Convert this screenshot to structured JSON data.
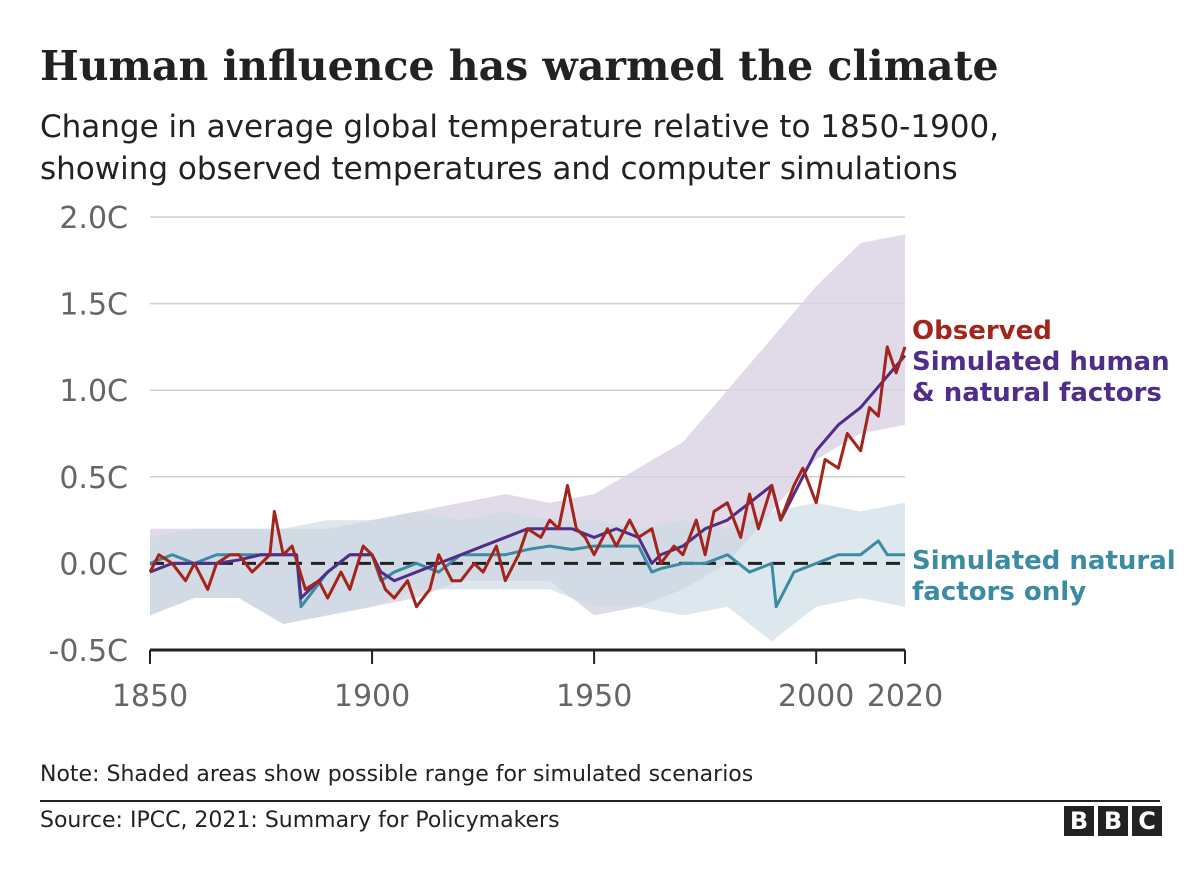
{
  "title": "Human influence has warmed the climate",
  "subtitle_line1": "Change in average global temperature relative to 1850-1900,",
  "subtitle_line2": "showing observed temperatures and computer simulations",
  "note": "Note: Shaded areas show possible range for simulated scenarios",
  "source": "Source: IPCC, 2021: Summary for Policymakers",
  "logo": [
    "B",
    "B",
    "C"
  ],
  "colors": {
    "observed": "#a3241a",
    "human": "#4f2d89",
    "natural": "#3b8ba3",
    "human_band": "#d9d2e3",
    "natural_band": "#c9dbe3"
  },
  "chart_data": {
    "type": "line",
    "title": "Human influence has warmed the climate",
    "xlabel": "",
    "ylabel": "",
    "xlim": [
      1850,
      2020
    ],
    "ylim": [
      -0.5,
      2.0
    ],
    "yticks": [
      -0.5,
      0.0,
      0.5,
      1.0,
      1.5,
      2.0
    ],
    "ytick_labels": [
      "-0.5C",
      "0.0C",
      "0.5C",
      "1.0C",
      "1.5C",
      "2.0C"
    ],
    "xticks": [
      1850,
      1900,
      1950,
      2000,
      2020
    ],
    "xtick_labels": [
      "1850",
      "1900",
      "1950",
      "2000",
      "2020"
    ],
    "grid": true,
    "legend": "right, inline labels",
    "labels": {
      "observed": "Observed",
      "human_1": "Simulated human",
      "human_2": "& natural factors",
      "natural_1": "Simulated natural",
      "natural_2": "factors only"
    },
    "series": [
      {
        "name": "Observed",
        "x": [
          1850,
          1852,
          1855,
          1858,
          1860,
          1863,
          1865,
          1868,
          1870,
          1873,
          1875,
          1877,
          1878,
          1880,
          1882,
          1885,
          1888,
          1890,
          1893,
          1895,
          1898,
          1900,
          1903,
          1905,
          1908,
          1910,
          1913,
          1915,
          1918,
          1920,
          1923,
          1925,
          1928,
          1930,
          1933,
          1935,
          1938,
          1940,
          1942,
          1944,
          1946,
          1948,
          1950,
          1953,
          1955,
          1958,
          1960,
          1963,
          1965,
          1968,
          1970,
          1973,
          1975,
          1977,
          1980,
          1983,
          1985,
          1987,
          1990,
          1992,
          1995,
          1997,
          2000,
          2002,
          2005,
          2007,
          2010,
          2012,
          2014,
          2016,
          2018,
          2020
        ],
        "y": [
          -0.05,
          0.05,
          0.0,
          -0.1,
          0.0,
          -0.15,
          0.0,
          0.05,
          0.05,
          -0.05,
          0.0,
          0.05,
          0.3,
          0.05,
          0.1,
          -0.15,
          -0.1,
          -0.2,
          -0.05,
          -0.15,
          0.1,
          0.05,
          -0.15,
          -0.2,
          -0.1,
          -0.25,
          -0.15,
          0.05,
          -0.1,
          -0.1,
          0.0,
          -0.05,
          0.1,
          -0.1,
          0.05,
          0.2,
          0.15,
          0.25,
          0.2,
          0.45,
          0.2,
          0.15,
          0.05,
          0.2,
          0.1,
          0.25,
          0.15,
          0.2,
          0.0,
          0.1,
          0.05,
          0.25,
          0.05,
          0.3,
          0.35,
          0.15,
          0.4,
          0.2,
          0.45,
          0.25,
          0.45,
          0.55,
          0.35,
          0.6,
          0.55,
          0.75,
          0.65,
          0.9,
          0.85,
          1.25,
          1.1,
          1.25
        ]
      },
      {
        "name": "Simulated human & natural factors",
        "x": [
          1850,
          1855,
          1860,
          1865,
          1870,
          1875,
          1880,
          1883,
          1884,
          1890,
          1895,
          1900,
          1902,
          1905,
          1910,
          1915,
          1920,
          1925,
          1930,
          1935,
          1940,
          1945,
          1950,
          1955,
          1960,
          1963,
          1965,
          1970,
          1975,
          1980,
          1985,
          1990,
          1992,
          1995,
          2000,
          2005,
          2010,
          2015,
          2020
        ],
        "y": [
          -0.05,
          0.0,
          0.0,
          0.0,
          0.02,
          0.05,
          0.05,
          0.05,
          -0.2,
          -0.05,
          0.05,
          0.05,
          -0.05,
          -0.1,
          -0.05,
          0.0,
          0.05,
          0.1,
          0.15,
          0.2,
          0.2,
          0.2,
          0.15,
          0.2,
          0.15,
          0.0,
          0.05,
          0.1,
          0.2,
          0.25,
          0.35,
          0.45,
          0.25,
          0.4,
          0.65,
          0.8,
          0.9,
          1.05,
          1.2
        ]
      },
      {
        "name": "Simulated natural factors only",
        "x": [
          1850,
          1855,
          1860,
          1865,
          1870,
          1875,
          1880,
          1883,
          1884,
          1890,
          1895,
          1900,
          1902,
          1905,
          1910,
          1915,
          1920,
          1925,
          1930,
          1935,
          1940,
          1945,
          1950,
          1955,
          1960,
          1963,
          1965,
          1970,
          1975,
          1980,
          1985,
          1990,
          1991,
          1995,
          2000,
          2005,
          2010,
          2014,
          2016,
          2020
        ],
        "y": [
          0.0,
          0.05,
          0.0,
          0.05,
          0.05,
          0.05,
          0.05,
          0.05,
          -0.25,
          -0.05,
          0.05,
          0.05,
          -0.1,
          -0.05,
          0.0,
          -0.05,
          0.05,
          0.05,
          0.05,
          0.08,
          0.1,
          0.08,
          0.1,
          0.1,
          0.1,
          -0.05,
          -0.03,
          0.0,
          0.0,
          0.05,
          -0.05,
          0.0,
          -0.25,
          -0.05,
          0.0,
          0.05,
          0.05,
          0.13,
          0.05,
          0.05
        ]
      }
    ],
    "bands": [
      {
        "name": "Simulated human & natural range",
        "x": [
          1850,
          1860,
          1870,
          1880,
          1890,
          1900,
          1910,
          1920,
          1930,
          1940,
          1950,
          1960,
          1970,
          1980,
          1990,
          2000,
          2010,
          2020
        ],
        "upper": [
          0.2,
          0.2,
          0.2,
          0.2,
          0.2,
          0.25,
          0.3,
          0.35,
          0.4,
          0.35,
          0.4,
          0.55,
          0.7,
          1.0,
          1.3,
          1.6,
          1.85,
          1.9
        ],
        "lower": [
          -0.3,
          -0.2,
          -0.2,
          -0.35,
          -0.3,
          -0.25,
          -0.2,
          -0.1,
          -0.1,
          -0.1,
          -0.3,
          -0.25,
          -0.15,
          0.0,
          0.3,
          0.6,
          0.75,
          0.8
        ]
      },
      {
        "name": "Simulated natural range",
        "x": [
          1850,
          1860,
          1870,
          1880,
          1890,
          1900,
          1910,
          1920,
          1930,
          1940,
          1950,
          1960,
          1970,
          1980,
          1990,
          2000,
          2010,
          2020
        ],
        "upper": [
          0.15,
          0.2,
          0.2,
          0.2,
          0.25,
          0.25,
          0.3,
          0.25,
          0.3,
          0.25,
          0.25,
          0.2,
          0.25,
          0.2,
          0.3,
          0.35,
          0.3,
          0.35
        ],
        "lower": [
          -0.3,
          -0.2,
          -0.2,
          -0.35,
          -0.3,
          -0.25,
          -0.15,
          -0.15,
          -0.15,
          -0.15,
          -0.25,
          -0.25,
          -0.3,
          -0.25,
          -0.45,
          -0.25,
          -0.2,
          -0.25
        ]
      }
    ]
  }
}
